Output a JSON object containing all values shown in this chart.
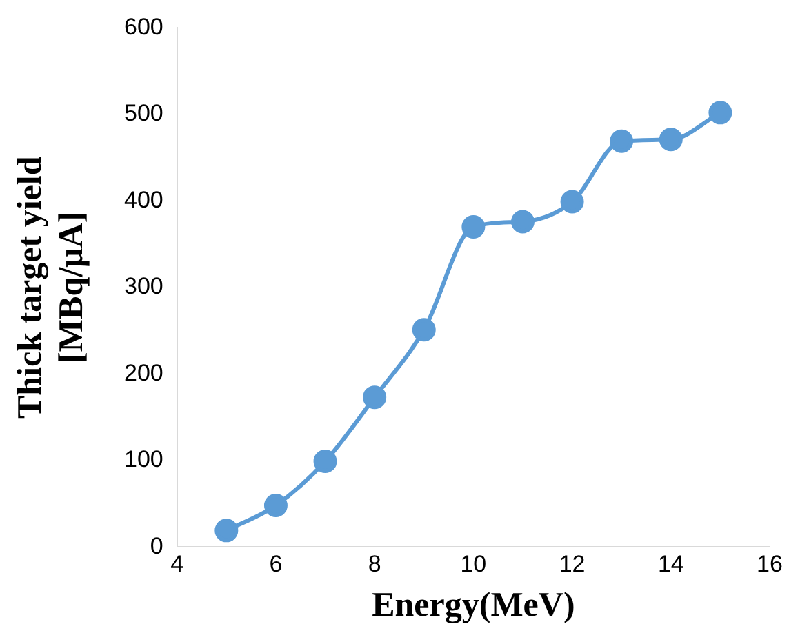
{
  "chart_data": {
    "type": "line",
    "xlabel": "Energy(MeV)",
    "ylabel": "Thick target yield\n[MBq/μA]",
    "x": [
      5,
      6,
      7,
      8,
      9,
      10,
      11,
      12,
      13,
      14,
      15
    ],
    "series": [
      {
        "color": "#5b9bd5",
        "values": [
          19,
          48,
          99,
          173,
          251,
          370,
          376,
          399,
          469,
          471,
          502
        ]
      }
    ],
    "xlim": [
      4,
      16
    ],
    "xticks": [
      4,
      6,
      8,
      10,
      12,
      14,
      16
    ],
    "ylim": [
      0,
      600
    ],
    "yticks": [
      0,
      100,
      200,
      300,
      400,
      500,
      600
    ],
    "grid": false,
    "legend": false,
    "marker": "circle",
    "line_style": "solid"
  }
}
